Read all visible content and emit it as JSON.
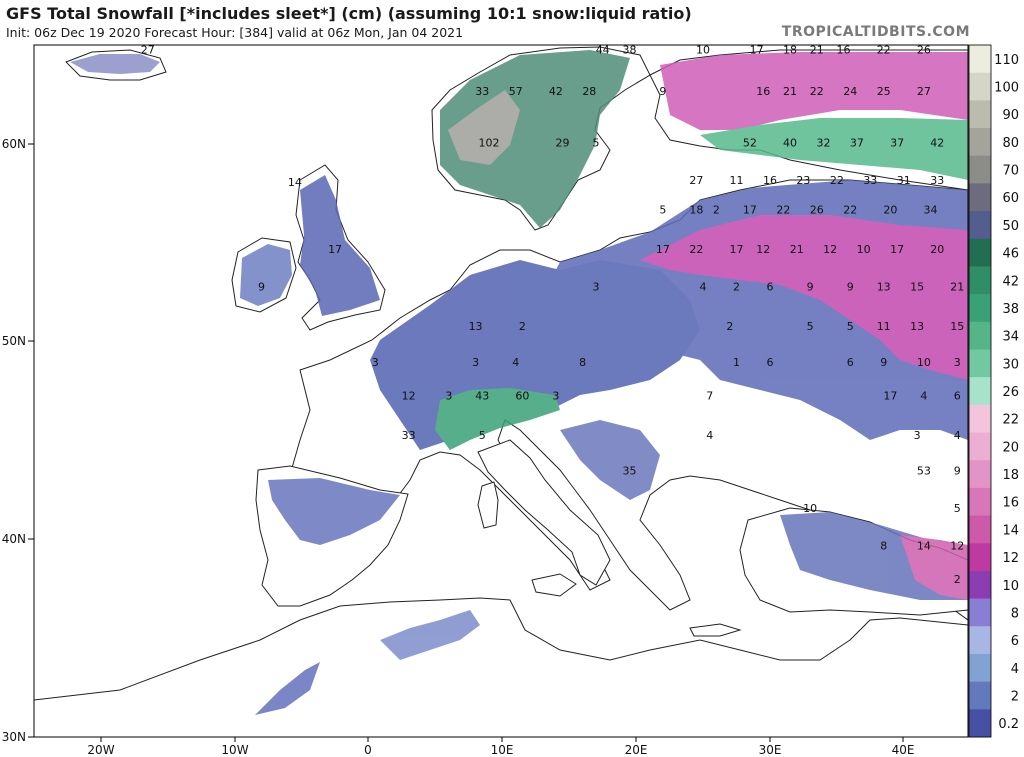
{
  "header": {
    "title": "GFS Total Snowfall [*includes sleet*] (cm) (assuming 10:1 snow:liquid ratio)",
    "subtitle": "Init: 06z Dec 19 2020   Forecast Hour: [384]   valid at 06z Mon, Jan 04 2021",
    "brand": "TROPICALTIDBITS.COM"
  },
  "axes": {
    "lat_ticks": [
      "60N",
      "50N",
      "40N",
      "30N"
    ],
    "lon_ticks": [
      "20W",
      "10W",
      "0",
      "10E",
      "20E",
      "30E",
      "40E"
    ]
  },
  "legend": {
    "units": "cm",
    "levels": [
      "110",
      "100",
      "90",
      "80",
      "70",
      "60",
      "50",
      "46",
      "42",
      "38",
      "34",
      "30",
      "26",
      "22",
      "20",
      "18",
      "16",
      "14",
      "12",
      "10",
      "8",
      "6",
      "4",
      "2",
      "0.2"
    ],
    "colors": [
      "#ededdf",
      "#d6d6c8",
      "#bcbcae",
      "#a4a49a",
      "#8c8c88",
      "#6c6c7e",
      "#535e8e",
      "#226e52",
      "#2f8e66",
      "#3aa176",
      "#55b589",
      "#72c8a0",
      "#a7e3cb",
      "#f3c4dc",
      "#ecaed2",
      "#e394c6",
      "#d877b8",
      "#cd5aa9",
      "#be3aa2",
      "#8d3db2",
      "#8a7ed4",
      "#a8b6e4",
      "#83a2d4",
      "#6479bc",
      "#4651a6"
    ]
  },
  "map_labels": [
    {
      "text": "27",
      "lon": -16.5,
      "lat": 64.8
    },
    {
      "text": "44",
      "lon": 17.5,
      "lat": 64.8
    },
    {
      "text": "38",
      "lon": 19.5,
      "lat": 64.8
    },
    {
      "text": "10",
      "lon": 25,
      "lat": 64.8
    },
    {
      "text": "17",
      "lon": 29,
      "lat": 64.8
    },
    {
      "text": "18",
      "lon": 31.5,
      "lat": 64.8
    },
    {
      "text": "21",
      "lon": 33.5,
      "lat": 64.8
    },
    {
      "text": "16",
      "lon": 35.5,
      "lat": 64.8
    },
    {
      "text": "22",
      "lon": 38.5,
      "lat": 64.8
    },
    {
      "text": "26",
      "lon": 41.5,
      "lat": 64.8
    },
    {
      "text": "33",
      "lon": 8.5,
      "lat": 62.7
    },
    {
      "text": "57",
      "lon": 11,
      "lat": 62.7
    },
    {
      "text": "42",
      "lon": 14,
      "lat": 62.7
    },
    {
      "text": "28",
      "lon": 16.5,
      "lat": 62.7
    },
    {
      "text": "9",
      "lon": 22,
      "lat": 62.7
    },
    {
      "text": "16",
      "lon": 29.5,
      "lat": 62.7
    },
    {
      "text": "21",
      "lon": 31.5,
      "lat": 62.7
    },
    {
      "text": "22",
      "lon": 33.5,
      "lat": 62.7
    },
    {
      "text": "24",
      "lon": 36,
      "lat": 62.7
    },
    {
      "text": "25",
      "lon": 38.5,
      "lat": 62.7
    },
    {
      "text": "27",
      "lon": 41.5,
      "lat": 62.7
    },
    {
      "text": "102",
      "lon": 9,
      "lat": 60.1
    },
    {
      "text": "29",
      "lon": 14.5,
      "lat": 60.1
    },
    {
      "text": "5",
      "lon": 17,
      "lat": 60.1
    },
    {
      "text": "52",
      "lon": 28.5,
      "lat": 60.1
    },
    {
      "text": "40",
      "lon": 31.5,
      "lat": 60.1
    },
    {
      "text": "32",
      "lon": 34,
      "lat": 60.1
    },
    {
      "text": "37",
      "lon": 36.5,
      "lat": 60.1
    },
    {
      "text": "37",
      "lon": 39.5,
      "lat": 60.1
    },
    {
      "text": "42",
      "lon": 42.5,
      "lat": 60.1
    },
    {
      "text": "27",
      "lon": 24.5,
      "lat": 58.2
    },
    {
      "text": "11",
      "lon": 27.5,
      "lat": 58.2
    },
    {
      "text": "16",
      "lon": 30,
      "lat": 58.2
    },
    {
      "text": "23",
      "lon": 32.5,
      "lat": 58.2
    },
    {
      "text": "22",
      "lon": 35,
      "lat": 58.2
    },
    {
      "text": "33",
      "lon": 37.5,
      "lat": 58.2
    },
    {
      "text": "31",
      "lon": 40,
      "lat": 58.2
    },
    {
      "text": "33",
      "lon": 42.5,
      "lat": 58.2
    },
    {
      "text": "5",
      "lon": 22,
      "lat": 56.7
    },
    {
      "text": "18",
      "lon": 24.5,
      "lat": 56.7
    },
    {
      "text": "2",
      "lon": 26,
      "lat": 56.7
    },
    {
      "text": "17",
      "lon": 28.5,
      "lat": 56.7
    },
    {
      "text": "22",
      "lon": 31,
      "lat": 56.7
    },
    {
      "text": "26",
      "lon": 33.5,
      "lat": 56.7
    },
    {
      "text": "22",
      "lon": 36,
      "lat": 56.7
    },
    {
      "text": "20",
      "lon": 39,
      "lat": 56.7
    },
    {
      "text": "34",
      "lon": 42,
      "lat": 56.7
    },
    {
      "text": "17",
      "lon": 22,
      "lat": 54.7
    },
    {
      "text": "22",
      "lon": 24.5,
      "lat": 54.7
    },
    {
      "text": "17",
      "lon": 27.5,
      "lat": 54.7
    },
    {
      "text": "12",
      "lon": 29.5,
      "lat": 54.7
    },
    {
      "text": "21",
      "lon": 32,
      "lat": 54.7
    },
    {
      "text": "12",
      "lon": 34.5,
      "lat": 54.7
    },
    {
      "text": "10",
      "lon": 37,
      "lat": 54.7
    },
    {
      "text": "17",
      "lon": 39.5,
      "lat": 54.7
    },
    {
      "text": "20",
      "lon": 42.5,
      "lat": 54.7
    },
    {
      "text": "14",
      "lon": -5.5,
      "lat": 58.1
    },
    {
      "text": "17",
      "lon": -2.5,
      "lat": 54.7
    },
    {
      "text": "9",
      "lon": -8,
      "lat": 52.8
    },
    {
      "text": "3",
      "lon": 17,
      "lat": 52.8
    },
    {
      "text": "4",
      "lon": 25,
      "lat": 52.8
    },
    {
      "text": "2",
      "lon": 27.5,
      "lat": 52.8
    },
    {
      "text": "6",
      "lon": 30,
      "lat": 52.8
    },
    {
      "text": "9",
      "lon": 33,
      "lat": 52.8
    },
    {
      "text": "9",
      "lon": 36,
      "lat": 52.8
    },
    {
      "text": "13",
      "lon": 38.5,
      "lat": 52.8
    },
    {
      "text": "15",
      "lon": 41,
      "lat": 52.8
    },
    {
      "text": "21",
      "lon": 44,
      "lat": 52.8
    },
    {
      "text": "13",
      "lon": 8,
      "lat": 50.8
    },
    {
      "text": "2",
      "lon": 11.5,
      "lat": 50.8
    },
    {
      "text": "2",
      "lon": 27,
      "lat": 50.8
    },
    {
      "text": "5",
      "lon": 33,
      "lat": 50.8
    },
    {
      "text": "5",
      "lon": 36,
      "lat": 50.8
    },
    {
      "text": "11",
      "lon": 38.5,
      "lat": 50.8
    },
    {
      "text": "13",
      "lon": 41,
      "lat": 50.8
    },
    {
      "text": "15",
      "lon": 44,
      "lat": 50.8
    },
    {
      "text": "3",
      "lon": 0.5,
      "lat": 49
    },
    {
      "text": "3",
      "lon": 8,
      "lat": 49
    },
    {
      "text": "4",
      "lon": 11,
      "lat": 49
    },
    {
      "text": "8",
      "lon": 16,
      "lat": 49
    },
    {
      "text": "1",
      "lon": 27.5,
      "lat": 49
    },
    {
      "text": "6",
      "lon": 30,
      "lat": 49
    },
    {
      "text": "6",
      "lon": 36,
      "lat": 49
    },
    {
      "text": "9",
      "lon": 38.5,
      "lat": 49
    },
    {
      "text": "10",
      "lon": 41.5,
      "lat": 49
    },
    {
      "text": "3",
      "lon": 44,
      "lat": 49
    },
    {
      "text": "12",
      "lon": 3,
      "lat": 47.3
    },
    {
      "text": "3",
      "lon": 6,
      "lat": 47.3
    },
    {
      "text": "43",
      "lon": 8.5,
      "lat": 47.3
    },
    {
      "text": "60",
      "lon": 11.5,
      "lat": 47.3
    },
    {
      "text": "3",
      "lon": 14,
      "lat": 47.3
    },
    {
      "text": "7",
      "lon": 25.5,
      "lat": 47.3
    },
    {
      "text": "17",
      "lon": 39,
      "lat": 47.3
    },
    {
      "text": "4",
      "lon": 41.5,
      "lat": 47.3
    },
    {
      "text": "6",
      "lon": 44,
      "lat": 47.3
    },
    {
      "text": "33",
      "lon": 3,
      "lat": 45.3
    },
    {
      "text": "5",
      "lon": 8.5,
      "lat": 45.3
    },
    {
      "text": "4",
      "lon": 25.5,
      "lat": 45.3
    },
    {
      "text": "3",
      "lon": 41,
      "lat": 45.3
    },
    {
      "text": "4",
      "lon": 44,
      "lat": 45.3
    },
    {
      "text": "35",
      "lon": 19.5,
      "lat": 43.5
    },
    {
      "text": "53",
      "lon": 41.5,
      "lat": 43.5
    },
    {
      "text": "9",
      "lon": 44,
      "lat": 43.5
    },
    {
      "text": "10",
      "lon": 33,
      "lat": 41.6
    },
    {
      "text": "5",
      "lon": 44,
      "lat": 41.6
    },
    {
      "text": "8",
      "lon": 38.5,
      "lat": 39.7
    },
    {
      "text": "14",
      "lon": 41.5,
      "lat": 39.7
    },
    {
      "text": "12",
      "lon": 44,
      "lat": 39.7
    },
    {
      "text": "2",
      "lon": 44,
      "lat": 38
    }
  ]
}
